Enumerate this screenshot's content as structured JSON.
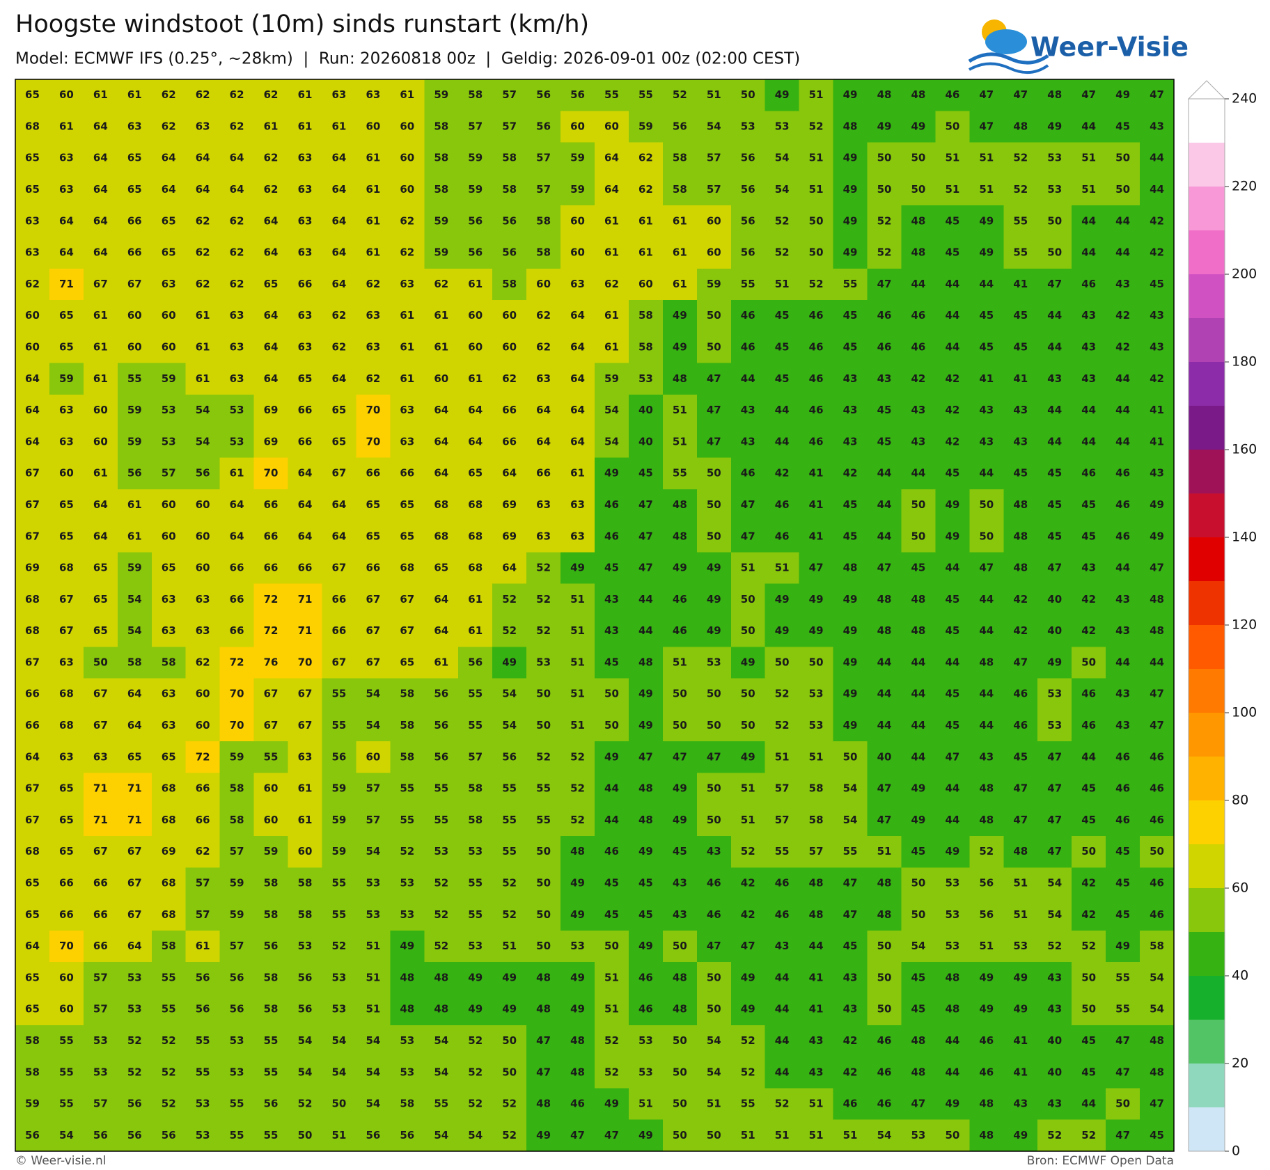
{
  "header": {
    "title": "Hoogste windstoot (10m) sinds runstart (km/h)",
    "subtitle": "Model: ECMWF IFS (0.25°, ~28km)  |  Run: 20260818 00z  |  Geldig: 2026-09-01 00z (02:00 CEST)"
  },
  "logo": {
    "text": "Weer-Visie"
  },
  "map": {
    "values": [
      [
        65,
        60,
        61,
        61,
        62,
        62,
        62,
        62,
        61,
        63,
        63,
        61,
        59,
        58,
        57,
        56,
        56,
        55,
        55,
        52,
        51,
        50,
        49,
        51,
        49,
        48,
        48,
        46,
        47,
        47,
        48,
        47,
        49,
        47
      ],
      [
        68,
        61,
        64,
        63,
        62,
        63,
        62,
        61,
        61,
        61,
        60,
        60,
        58,
        57,
        57,
        56,
        60,
        60,
        59,
        56,
        54,
        53,
        53,
        52,
        48,
        49,
        49,
        50,
        47,
        48,
        49,
        44,
        45,
        43
      ],
      [
        65,
        63,
        64,
        65,
        64,
        64,
        64,
        62,
        63,
        64,
        61,
        60,
        58,
        59,
        58,
        57,
        59,
        64,
        62,
        58,
        57,
        56,
        54,
        51,
        49,
        50,
        50,
        51,
        51,
        52,
        53,
        51,
        50,
        44
      ],
      [
        65,
        63,
        64,
        65,
        64,
        64,
        64,
        62,
        63,
        64,
        61,
        60,
        58,
        59,
        58,
        57,
        59,
        64,
        62,
        58,
        57,
        56,
        54,
        51,
        49,
        50,
        50,
        51,
        51,
        52,
        53,
        51,
        50,
        44
      ],
      [
        63,
        64,
        64,
        66,
        65,
        62,
        62,
        64,
        63,
        64,
        61,
        62,
        59,
        56,
        56,
        58,
        60,
        61,
        61,
        61,
        60,
        56,
        52,
        50,
        49,
        52,
        48,
        45,
        49,
        55,
        50,
        44,
        44,
        42
      ],
      [
        63,
        64,
        64,
        66,
        65,
        62,
        62,
        64,
        63,
        64,
        61,
        62,
        59,
        56,
        56,
        58,
        60,
        61,
        61,
        61,
        60,
        56,
        52,
        50,
        49,
        52,
        48,
        45,
        49,
        55,
        50,
        44,
        44,
        42
      ],
      [
        62,
        71,
        67,
        67,
        63,
        62,
        62,
        65,
        66,
        64,
        62,
        63,
        62,
        61,
        58,
        60,
        63,
        62,
        60,
        61,
        59,
        55,
        51,
        52,
        55,
        47,
        44,
        44,
        44,
        41,
        47,
        46,
        43,
        45
      ],
      [
        60,
        65,
        61,
        60,
        60,
        61,
        63,
        64,
        63,
        62,
        63,
        61,
        61,
        60,
        60,
        62,
        64,
        61,
        58,
        49,
        50,
        46,
        45,
        46,
        45,
        46,
        46,
        44,
        45,
        45,
        44,
        43,
        42,
        43
      ],
      [
        60,
        65,
        61,
        60,
        60,
        61,
        63,
        64,
        63,
        62,
        63,
        61,
        61,
        60,
        60,
        62,
        64,
        61,
        58,
        49,
        50,
        46,
        45,
        46,
        45,
        46,
        46,
        44,
        45,
        45,
        44,
        43,
        42,
        43
      ],
      [
        64,
        59,
        61,
        55,
        59,
        61,
        63,
        64,
        65,
        64,
        62,
        61,
        60,
        61,
        62,
        63,
        64,
        59,
        53,
        48,
        47,
        44,
        45,
        46,
        43,
        43,
        42,
        42,
        41,
        41,
        43,
        43,
        44,
        42
      ],
      [
        64,
        63,
        60,
        59,
        53,
        54,
        53,
        69,
        66,
        65,
        70,
        63,
        64,
        64,
        66,
        64,
        64,
        54,
        40,
        51,
        47,
        43,
        44,
        46,
        43,
        45,
        43,
        42,
        43,
        43,
        44,
        44,
        44,
        41
      ],
      [
        64,
        63,
        60,
        59,
        53,
        54,
        53,
        69,
        66,
        65,
        70,
        63,
        64,
        64,
        66,
        64,
        64,
        54,
        40,
        51,
        47,
        43,
        44,
        46,
        43,
        45,
        43,
        42,
        43,
        43,
        44,
        44,
        44,
        41
      ],
      [
        67,
        60,
        61,
        56,
        57,
        56,
        61,
        70,
        64,
        67,
        66,
        66,
        64,
        65,
        64,
        66,
        61,
        49,
        45,
        55,
        50,
        46,
        42,
        41,
        42,
        44,
        44,
        45,
        44,
        45,
        45,
        46,
        46,
        43
      ],
      [
        67,
        65,
        64,
        61,
        60,
        60,
        64,
        66,
        64,
        64,
        65,
        65,
        68,
        68,
        69,
        63,
        63,
        46,
        47,
        48,
        50,
        47,
        46,
        41,
        45,
        44,
        50,
        49,
        50,
        48,
        45,
        45,
        46,
        49
      ],
      [
        67,
        65,
        64,
        61,
        60,
        60,
        64,
        66,
        64,
        64,
        65,
        65,
        68,
        68,
        69,
        63,
        63,
        46,
        47,
        48,
        50,
        47,
        46,
        41,
        45,
        44,
        50,
        49,
        50,
        48,
        45,
        45,
        46,
        49
      ],
      [
        69,
        68,
        65,
        59,
        65,
        60,
        66,
        66,
        66,
        67,
        66,
        68,
        65,
        68,
        64,
        52,
        49,
        45,
        47,
        49,
        49,
        51,
        51,
        47,
        48,
        47,
        45,
        44,
        47,
        48,
        47,
        43,
        44,
        47
      ],
      [
        68,
        67,
        65,
        54,
        63,
        63,
        66,
        72,
        71,
        66,
        67,
        67,
        64,
        61,
        52,
        52,
        51,
        43,
        44,
        46,
        49,
        50,
        49,
        49,
        49,
        48,
        48,
        45,
        44,
        42,
        40,
        42,
        43,
        48
      ],
      [
        68,
        67,
        65,
        54,
        63,
        63,
        66,
        72,
        71,
        66,
        67,
        67,
        64,
        61,
        52,
        52,
        51,
        43,
        44,
        46,
        49,
        50,
        49,
        49,
        49,
        48,
        48,
        45,
        44,
        42,
        40,
        42,
        43,
        48
      ],
      [
        67,
        63,
        50,
        58,
        58,
        62,
        72,
        76,
        70,
        67,
        67,
        65,
        61,
        56,
        49,
        53,
        51,
        45,
        48,
        51,
        53,
        49,
        50,
        50,
        49,
        44,
        44,
        44,
        48,
        47,
        49,
        50,
        44,
        44
      ],
      [
        66,
        68,
        67,
        64,
        63,
        60,
        70,
        67,
        67,
        55,
        54,
        58,
        56,
        55,
        54,
        50,
        51,
        50,
        49,
        50,
        50,
        50,
        52,
        53,
        49,
        44,
        44,
        45,
        44,
        46,
        53,
        46,
        43,
        47
      ],
      [
        66,
        68,
        67,
        64,
        63,
        60,
        70,
        67,
        67,
        55,
        54,
        58,
        56,
        55,
        54,
        50,
        51,
        50,
        49,
        50,
        50,
        50,
        52,
        53,
        49,
        44,
        44,
        45,
        44,
        46,
        53,
        46,
        43,
        47
      ],
      [
        64,
        63,
        63,
        65,
        65,
        72,
        59,
        55,
        63,
        56,
        60,
        58,
        56,
        57,
        56,
        52,
        52,
        49,
        47,
        47,
        47,
        49,
        51,
        51,
        50,
        40,
        44,
        47,
        43,
        45,
        47,
        44,
        46,
        46
      ],
      [
        67,
        65,
        71,
        71,
        68,
        66,
        58,
        60,
        61,
        59,
        57,
        55,
        55,
        58,
        55,
        55,
        52,
        44,
        48,
        49,
        50,
        51,
        57,
        58,
        54,
        47,
        49,
        44,
        48,
        47,
        47,
        45,
        46,
        46
      ],
      [
        67,
        65,
        71,
        71,
        68,
        66,
        58,
        60,
        61,
        59,
        57,
        55,
        55,
        58,
        55,
        55,
        52,
        44,
        48,
        49,
        50,
        51,
        57,
        58,
        54,
        47,
        49,
        44,
        48,
        47,
        47,
        45,
        46,
        46
      ],
      [
        68,
        65,
        67,
        67,
        69,
        62,
        57,
        59,
        60,
        59,
        54,
        52,
        53,
        53,
        55,
        50,
        48,
        46,
        49,
        45,
        43,
        52,
        55,
        57,
        55,
        51,
        45,
        49,
        52,
        48,
        47,
        50,
        45,
        50
      ],
      [
        65,
        66,
        66,
        67,
        68,
        57,
        59,
        58,
        58,
        55,
        53,
        53,
        52,
        55,
        52,
        50,
        49,
        45,
        45,
        43,
        46,
        42,
        46,
        48,
        47,
        48,
        50,
        53,
        56,
        51,
        54,
        42,
        45,
        46
      ],
      [
        65,
        66,
        66,
        67,
        68,
        57,
        59,
        58,
        58,
        55,
        53,
        53,
        52,
        55,
        52,
        50,
        49,
        45,
        45,
        43,
        46,
        42,
        46,
        48,
        47,
        48,
        50,
        53,
        56,
        51,
        54,
        42,
        45,
        46
      ],
      [
        64,
        70,
        66,
        64,
        58,
        61,
        57,
        56,
        53,
        52,
        51,
        49,
        52,
        53,
        51,
        50,
        53,
        50,
        49,
        50,
        47,
        47,
        43,
        44,
        45,
        50,
        54,
        53,
        51,
        53,
        52,
        52,
        49,
        58
      ],
      [
        65,
        60,
        57,
        53,
        55,
        56,
        56,
        58,
        56,
        53,
        51,
        48,
        48,
        49,
        49,
        48,
        49,
        51,
        46,
        48,
        50,
        49,
        44,
        41,
        43,
        50,
        45,
        48,
        49,
        49,
        43,
        50,
        55,
        54
      ],
      [
        65,
        60,
        57,
        53,
        55,
        56,
        56,
        58,
        56,
        53,
        51,
        48,
        48,
        49,
        49,
        48,
        49,
        51,
        46,
        48,
        50,
        49,
        44,
        41,
        43,
        50,
        45,
        48,
        49,
        49,
        43,
        50,
        55,
        54
      ],
      [
        58,
        55,
        53,
        52,
        52,
        55,
        53,
        55,
        54,
        54,
        54,
        53,
        54,
        52,
        50,
        47,
        48,
        52,
        53,
        50,
        54,
        52,
        44,
        43,
        42,
        46,
        48,
        44,
        46,
        41,
        40,
        45,
        47,
        48
      ],
      [
        58,
        55,
        53,
        52,
        52,
        55,
        53,
        55,
        54,
        54,
        54,
        53,
        54,
        52,
        50,
        47,
        48,
        52,
        53,
        50,
        54,
        52,
        44,
        43,
        42,
        46,
        48,
        44,
        46,
        41,
        40,
        45,
        47,
        48
      ],
      [
        59,
        55,
        57,
        56,
        52,
        53,
        55,
        56,
        52,
        50,
        54,
        58,
        55,
        52,
        52,
        48,
        46,
        49,
        51,
        50,
        51,
        55,
        52,
        51,
        46,
        46,
        47,
        49,
        48,
        43,
        43,
        44,
        50,
        47
      ],
      [
        56,
        54,
        56,
        56,
        56,
        53,
        55,
        55,
        50,
        51,
        56,
        56,
        54,
        54,
        52,
        49,
        47,
        47,
        49,
        50,
        50,
        51,
        51,
        51,
        51,
        54,
        53,
        50,
        48,
        49,
        52,
        52,
        47,
        45
      ]
    ]
  },
  "colorbar": {
    "levels": [
      0,
      10,
      20,
      30,
      40,
      50,
      60,
      70,
      80,
      90,
      100,
      110,
      120,
      130,
      140,
      150,
      160,
      170,
      180,
      190,
      200,
      210,
      220,
      230,
      240
    ],
    "colors": [
      "#cfe6f7",
      "#8fd8bd",
      "#52c466",
      "#17b02c",
      "#36b312",
      "#88c70b",
      "#d0d500",
      "#fdd000",
      "#ffb300",
      "#ff9800",
      "#ff7a00",
      "#ff5a00",
      "#ee3300",
      "#e00000",
      "#c8102e",
      "#a01258",
      "#7a1a88",
      "#8c2ca8",
      "#b042b4",
      "#d052c2",
      "#f06ec8",
      "#f898d6",
      "#fcc8e8",
      "#ffffff"
    ],
    "ticks": [
      0,
      20,
      40,
      60,
      80,
      100,
      120,
      140,
      160,
      180,
      200,
      220,
      240
    ]
  },
  "footer": {
    "left": "© Weer-visie.nl",
    "right": "Bron: ECMWF Open Data"
  }
}
